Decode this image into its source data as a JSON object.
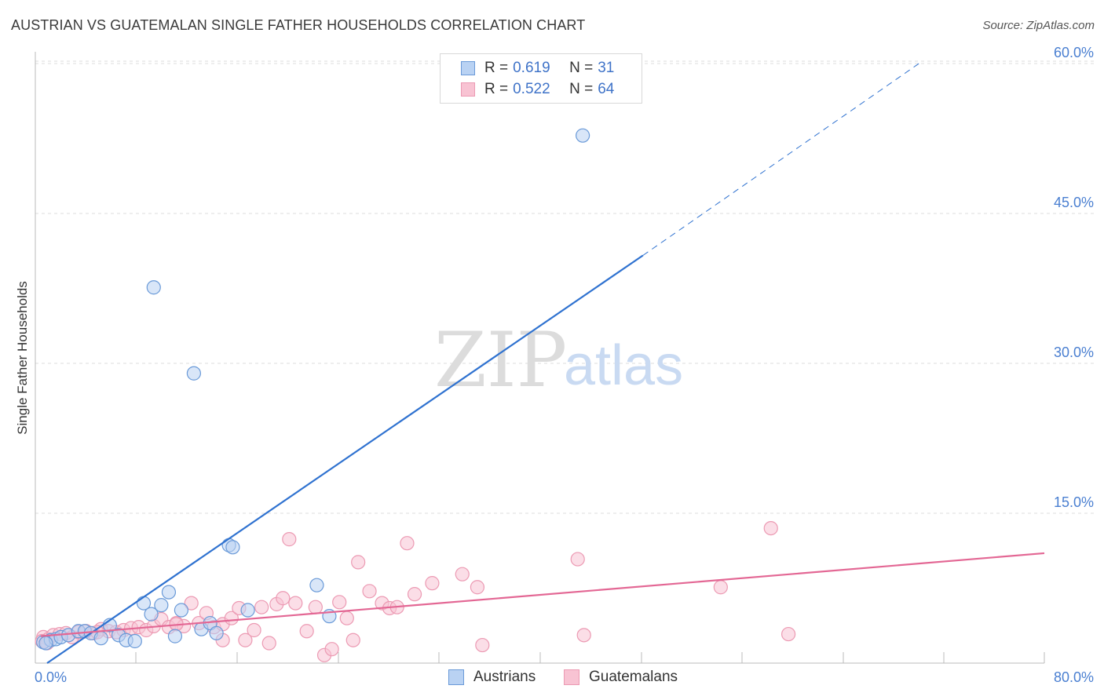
{
  "header": {
    "title": "AUSTRIAN VS GUATEMALAN SINGLE FATHER HOUSEHOLDS CORRELATION CHART",
    "source": "Source: ZipAtlas.com"
  },
  "watermark": {
    "zip": "ZIP",
    "atlas": "atlas"
  },
  "legend": {
    "rows": [
      {
        "r_label": "R =",
        "r_value": "0.619",
        "n_label": "N =",
        "n_value": "31"
      },
      {
        "r_label": "R =",
        "r_value": "0.522",
        "n_label": "N =",
        "n_value": "64"
      }
    ]
  },
  "bottom_legend": {
    "austrians": "Austrians",
    "guatemalans": "Guatemalans"
  },
  "colors": {
    "austrian_fill": "#b9d2f3",
    "austrian_stroke": "#6a9ad8",
    "austrian_line": "#2f72d0",
    "guatemalan_fill": "#f8c3d3",
    "guatemalan_stroke": "#ec9ab3",
    "guatemalan_line": "#e36794",
    "tick_text": "#4a7fd1",
    "grid": "#dddddd"
  },
  "chart_data": {
    "type": "scatter",
    "title": "AUSTRIAN VS GUATEMALAN SINGLE FATHER HOUSEHOLDS CORRELATION CHART",
    "xlabel": "",
    "ylabel": "Single Father Households",
    "xlim": [
      0,
      80
    ],
    "ylim": [
      0,
      62
    ],
    "x_tick_labels": [
      "0.0%",
      "80.0%"
    ],
    "y_ticks": [
      {
        "value": 15,
        "label": "15.0%"
      },
      {
        "value": 30,
        "label": "30.0%"
      },
      {
        "value": 45,
        "label": "45.0%"
      },
      {
        "value": 60,
        "label": "60.0%"
      }
    ],
    "series": [
      {
        "name": "Austrians",
        "r": 0.619,
        "n": 31,
        "trend": {
          "x0": 0.5,
          "y0": 0.0,
          "x1": 48.0,
          "y1": 40.8,
          "dash_to_x": 70.0,
          "dash_to_y": 60.0
        },
        "points": [
          [
            0.2,
            2.1
          ],
          [
            0.8,
            2.3
          ],
          [
            1.2,
            2.4
          ],
          [
            1.6,
            2.6
          ],
          [
            2.2,
            2.8
          ],
          [
            3.0,
            3.2
          ],
          [
            3.5,
            3.2
          ],
          [
            4.0,
            3.0
          ],
          [
            4.8,
            2.5
          ],
          [
            5.5,
            3.8
          ],
          [
            6.2,
            2.8
          ],
          [
            6.8,
            2.3
          ],
          [
            7.5,
            2.2
          ],
          [
            8.2,
            6.0
          ],
          [
            8.8,
            4.9
          ],
          [
            9.0,
            37.6
          ],
          [
            9.6,
            5.8
          ],
          [
            10.2,
            7.1
          ],
          [
            10.7,
            2.7
          ],
          [
            11.2,
            5.3
          ],
          [
            12.2,
            29.0
          ],
          [
            12.8,
            3.4
          ],
          [
            13.5,
            4.0
          ],
          [
            14.0,
            3.0
          ],
          [
            15.0,
            11.8
          ],
          [
            15.3,
            11.6
          ],
          [
            16.5,
            5.3
          ],
          [
            22.0,
            7.8
          ],
          [
            23.0,
            4.7
          ],
          [
            43.2,
            52.8
          ],
          [
            0.4,
            2.0
          ]
        ]
      },
      {
        "name": "Guatemalans",
        "r": 0.522,
        "n": 64,
        "trend": {
          "x0": 0.0,
          "y0": 2.7,
          "x1": 80.0,
          "y1": 11.0
        },
        "points": [
          [
            0.2,
            2.6
          ],
          [
            0.6,
            2.4
          ],
          [
            1.0,
            2.8
          ],
          [
            1.5,
            2.9
          ],
          [
            2.0,
            3.0
          ],
          [
            2.5,
            2.6
          ],
          [
            3.0,
            3.1
          ],
          [
            3.6,
            3.2
          ],
          [
            4.2,
            3.0
          ],
          [
            4.8,
            3.4
          ],
          [
            5.4,
            3.2
          ],
          [
            6.0,
            3.1
          ],
          [
            6.6,
            3.3
          ],
          [
            7.2,
            3.5
          ],
          [
            7.8,
            3.6
          ],
          [
            8.4,
            3.3
          ],
          [
            9.0,
            3.7
          ],
          [
            9.6,
            4.4
          ],
          [
            10.2,
            3.6
          ],
          [
            10.8,
            4.0
          ],
          [
            11.4,
            3.7
          ],
          [
            12.0,
            6.0
          ],
          [
            12.6,
            4.0
          ],
          [
            13.2,
            5.0
          ],
          [
            13.8,
            3.6
          ],
          [
            14.5,
            2.3
          ],
          [
            14.5,
            3.9
          ],
          [
            15.2,
            4.5
          ],
          [
            15.8,
            5.5
          ],
          [
            16.3,
            2.3
          ],
          [
            17.0,
            3.3
          ],
          [
            17.6,
            5.6
          ],
          [
            18.2,
            2.0
          ],
          [
            18.8,
            5.9
          ],
          [
            19.3,
            6.5
          ],
          [
            19.8,
            12.4
          ],
          [
            20.3,
            6.0
          ],
          [
            21.2,
            3.2
          ],
          [
            21.9,
            5.6
          ],
          [
            22.6,
            0.8
          ],
          [
            23.2,
            1.4
          ],
          [
            23.8,
            6.1
          ],
          [
            24.4,
            4.5
          ],
          [
            24.9,
            2.3
          ],
          [
            25.3,
            10.1
          ],
          [
            26.2,
            7.2
          ],
          [
            27.2,
            6.0
          ],
          [
            27.8,
            5.5
          ],
          [
            28.4,
            5.6
          ],
          [
            29.2,
            12.0
          ],
          [
            29.8,
            6.9
          ],
          [
            31.2,
            8.0
          ],
          [
            33.6,
            8.9
          ],
          [
            34.8,
            7.6
          ],
          [
            35.2,
            1.8
          ],
          [
            42.8,
            10.4
          ],
          [
            43.3,
            2.8
          ],
          [
            54.2,
            7.6
          ],
          [
            58.2,
            13.5
          ],
          [
            59.6,
            2.9
          ],
          [
            0.1,
            2.2
          ],
          [
            0.5,
            2.0
          ],
          [
            4.5,
            3.1
          ],
          [
            10.8,
            3.9
          ]
        ]
      }
    ]
  }
}
